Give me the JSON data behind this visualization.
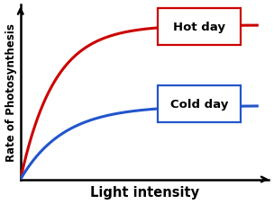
{
  "xlabel": "Light intensity",
  "ylabel": "Rate of Photosynthesis",
  "background_color": "#ffffff",
  "grid_color": "#c8d4e8",
  "hot_color": "#cc0000",
  "cold_color": "#2255cc",
  "hot_label": "Hot day",
  "cold_label": "Cold day",
  "hot_sat": 0.88,
  "cold_sat": 0.42,
  "hot_rate": 0.7,
  "cold_rate": 0.55,
  "xlabel_fontsize": 10.5,
  "ylabel_fontsize": 8.5,
  "label_fontsize": 9.5,
  "lw": 2.2
}
